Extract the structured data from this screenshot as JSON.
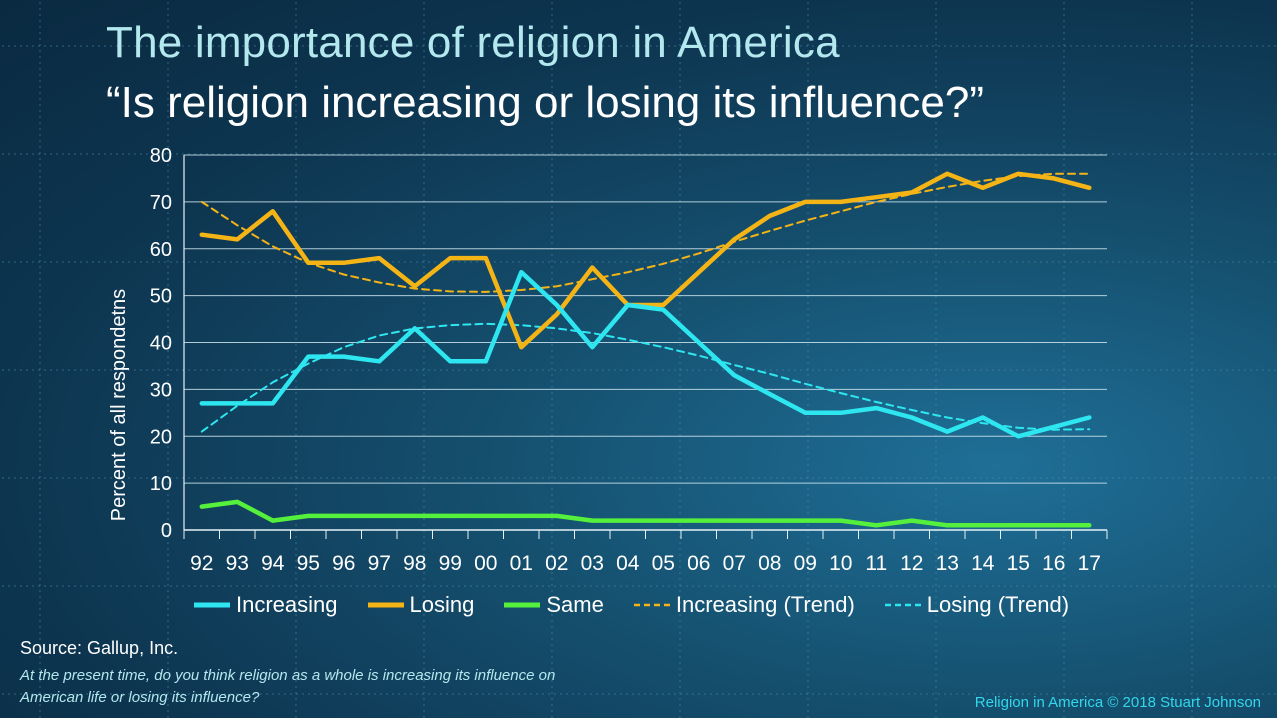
{
  "colors": {
    "increasing": "#2ee6f0",
    "losing": "#f5b416",
    "same": "#55f03c",
    "grid": "#cfe6ee",
    "text": "#ffffff",
    "accent_title": "#b3e8ee",
    "credit": "#33d6ea"
  },
  "header": {
    "title": "The importance of religion in America",
    "subtitle": "“Is religion increasing or losing its influence?”"
  },
  "legend": {
    "increasing": "Increasing",
    "losing": "Losing",
    "same": "Same",
    "increasing_trend": "Increasing (Trend)",
    "losing_trend": "Losing (Trend)"
  },
  "footer": {
    "source": "Source: Gallup, Inc.",
    "question": "At the present time, do you think religion as a whole is increasing its influence on American life or losing its influence?",
    "credit": "Religion in America © 2018 Stuart Johnson"
  },
  "chart_data": {
    "type": "line",
    "title": "The importance of religion in America",
    "xlabel": "",
    "ylabel": "Percent of all respondetns",
    "ylim": [
      0,
      80
    ],
    "yticks": [
      0,
      10,
      20,
      30,
      40,
      50,
      60,
      70,
      80
    ],
    "grid": true,
    "legend_position": "bottom",
    "categories": [
      "92",
      "93",
      "94",
      "95",
      "96",
      "97",
      "98",
      "99",
      "00",
      "01",
      "02",
      "03",
      "04",
      "05",
      "06",
      "07",
      "08",
      "09",
      "10",
      "11",
      "12",
      "13",
      "14",
      "15",
      "16",
      "17"
    ],
    "series": [
      {
        "name": "Increasing",
        "style": "solid",
        "color": "#2ee6f0",
        "values": [
          27,
          27,
          27,
          37,
          37,
          36,
          43,
          36,
          36,
          55,
          48,
          39,
          48,
          47,
          40,
          33,
          29,
          25,
          25,
          26,
          24,
          21,
          24,
          20,
          22,
          24
        ]
      },
      {
        "name": "Losing",
        "style": "solid",
        "color": "#f5b416",
        "values": [
          63,
          62,
          68,
          57,
          57,
          58,
          52,
          58,
          58,
          39,
          46,
          56,
          48,
          48,
          55,
          62,
          67,
          70,
          70,
          71,
          72,
          76,
          73,
          76,
          75,
          73
        ]
      },
      {
        "name": "Same",
        "style": "solid",
        "color": "#55f03c",
        "values": [
          5,
          6,
          2,
          3,
          3,
          3,
          3,
          3,
          3,
          3,
          3,
          2,
          2,
          2,
          2,
          2,
          2,
          2,
          2,
          1,
          2,
          1,
          1,
          1,
          1,
          1
        ]
      },
      {
        "name": "Increasing (Trend)",
        "style": "dashed",
        "color": "#f5b416",
        "values": [
          70,
          65,
          60.5,
          57,
          54.5,
          52.8,
          51.5,
          50.9,
          50.8,
          51.2,
          52,
          53.5,
          55,
          56.8,
          59,
          61.5,
          63.8,
          66,
          68,
          70,
          71.7,
          73.2,
          74.5,
          75.5,
          76,
          76
        ]
      },
      {
        "name": "Losing (Trend)",
        "style": "dashed",
        "color": "#2ee6f0",
        "values": [
          21,
          26.5,
          31.5,
          35.5,
          39,
          41.5,
          43,
          43.7,
          44,
          43.7,
          43,
          42,
          40.6,
          39,
          37.2,
          35.2,
          33.3,
          31.2,
          29.2,
          27.3,
          25.6,
          24,
          22.8,
          21.8,
          21.4,
          21.5
        ]
      }
    ]
  }
}
